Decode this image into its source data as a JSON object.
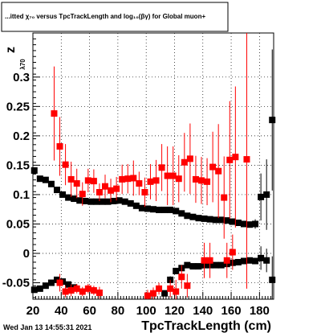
{
  "chart_data": {
    "type": "scatter",
    "title": "...itted  χ₇₀ versus TpcTrackLength and log₁₀(βγ) for Global muon+",
    "xlabel": "TpcTrackLength (cm)",
    "ylabel": "z",
    "ylabel_sub": "λ70",
    "timestamp": "Wed Jan 13 14:55:31 2021",
    "xlim": [
      20,
      190
    ],
    "ylim": [
      -0.078,
      0.375
    ],
    "x_ticks": [
      20,
      40,
      60,
      80,
      100,
      120,
      140,
      160,
      180
    ],
    "y_ticks": [
      -0.05,
      0,
      0.05,
      0.1,
      0.15,
      0.2,
      0.25,
      0.3
    ],
    "y_tick_labels": [
      "-0.05",
      "0",
      "0.05",
      "0.1",
      "0.15",
      "0.2",
      "0.25",
      "0.3"
    ],
    "grid": true,
    "colors": {
      "black_series": "#000000",
      "red_series": "#ff0000"
    },
    "series": [
      {
        "color": "black",
        "x": [
          21,
          25,
          29,
          33,
          37,
          41,
          45,
          49,
          53,
          57,
          61,
          65,
          69,
          73,
          77,
          81,
          85,
          89,
          93,
          97,
          101,
          105,
          109,
          113,
          117,
          121,
          125,
          129,
          133,
          137,
          141,
          145,
          149,
          153,
          157,
          161,
          165,
          169,
          173,
          177,
          181,
          185,
          189
        ],
        "y": [
          0.141,
          0.127,
          0.125,
          0.118,
          0.108,
          0.1,
          0.095,
          0.093,
          0.09,
          0.089,
          0.088,
          0.088,
          0.088,
          0.088,
          0.089,
          0.09,
          0.088,
          0.085,
          0.081,
          0.077,
          0.076,
          0.075,
          0.074,
          0.074,
          0.074,
          0.072,
          0.068,
          0.064,
          0.062,
          0.06,
          0.059,
          0.058,
          0.057,
          0.057,
          0.056,
          0.054,
          0.052,
          0.05,
          0.049,
          0.05,
          0.096,
          0.1,
          0.227
        ],
        "yerr": [
          0.005,
          0.003,
          0.003,
          0.003,
          0.003,
          0.002,
          0.002,
          0.002,
          0.002,
          0.002,
          0.002,
          0.002,
          0.002,
          0.002,
          0.002,
          0.002,
          0.002,
          0.002,
          0.002,
          0.002,
          0.002,
          0.002,
          0.002,
          0.002,
          0.002,
          0.002,
          0.002,
          0.002,
          0.002,
          0.002,
          0.002,
          0.002,
          0.002,
          0.002,
          0.002,
          0.003,
          0.003,
          0.003,
          0.004,
          0.008,
          0.04,
          0.06,
          0.12
        ]
      },
      {
        "color": "black",
        "x": [
          21,
          25,
          29,
          33,
          37,
          41,
          45,
          49,
          113,
          117,
          121,
          125,
          129,
          133,
          137,
          141,
          145,
          149,
          153,
          157,
          161,
          165,
          169,
          173,
          177,
          181,
          185,
          189
        ],
        "y": [
          -0.062,
          -0.06,
          -0.055,
          -0.05,
          -0.045,
          -0.048,
          -0.053,
          -0.058,
          -0.068,
          -0.045,
          -0.03,
          -0.025,
          -0.02,
          -0.022,
          -0.022,
          -0.02,
          -0.02,
          -0.02,
          -0.02,
          -0.018,
          -0.016,
          -0.015,
          -0.013,
          -0.012,
          -0.013,
          -0.008,
          -0.012,
          -0.045
        ],
        "yerr": [
          0.003,
          0.003,
          0.003,
          0.003,
          0.003,
          0.003,
          0.003,
          0.003,
          0.004,
          0.006,
          0.004,
          0.003,
          0.003,
          0.003,
          0.003,
          0.003,
          0.003,
          0.003,
          0.003,
          0.003,
          0.003,
          0.003,
          0.003,
          0.004,
          0.004,
          0.02,
          0.02,
          0.04
        ]
      },
      {
        "color": "red",
        "x": [
          35,
          39,
          43,
          47,
          51,
          55,
          59,
          63,
          67,
          71,
          75,
          79,
          83,
          87,
          91,
          95,
          99,
          103,
          107,
          111,
          115,
          119,
          123,
          127,
          131,
          135,
          139,
          143,
          147,
          151,
          155,
          159,
          163,
          171
        ],
        "y": [
          0.238,
          0.182,
          0.151,
          0.126,
          0.119,
          0.101,
          0.124,
          0.123,
          0.104,
          0.114,
          0.107,
          0.11,
          0.126,
          0.127,
          0.128,
          0.119,
          0.104,
          0.122,
          0.124,
          0.146,
          0.132,
          0.132,
          0.127,
          0.155,
          0.161,
          0.126,
          0.124,
          0.122,
          0.147,
          0.14,
          0.095,
          0.159,
          0.164,
          0.16
        ],
        "yerr": [
          0.08,
          0.05,
          0.035,
          0.03,
          0.025,
          0.02,
          0.02,
          0.02,
          0.015,
          0.02,
          0.02,
          0.02,
          0.025,
          0.025,
          0.03,
          0.02,
          0.025,
          0.03,
          0.035,
          0.04,
          0.05,
          0.05,
          0.04,
          0.05,
          0.06,
          0.04,
          0.04,
          0.04,
          0.06,
          0.08,
          0.07,
          0.1,
          0.12,
          0.22
        ]
      },
      {
        "color": "red",
        "x": [
          39,
          43,
          47,
          51,
          55,
          59,
          63,
          67,
          101,
          105,
          109,
          117,
          121,
          125,
          129,
          141,
          145,
          157,
          161
        ],
        "y": [
          -0.05,
          -0.065,
          -0.063,
          -0.06,
          -0.065,
          -0.06,
          -0.063,
          -0.067,
          -0.072,
          -0.068,
          -0.06,
          -0.06,
          -0.065,
          -0.04,
          -0.055,
          -0.012,
          -0.012,
          -0.012,
          0.002
        ],
        "yerr": [
          0.015,
          0.01,
          0.01,
          0.008,
          0.008,
          0.008,
          0.008,
          0.01,
          0.01,
          0.01,
          0.01,
          0.015,
          0.02,
          0.02,
          0.02,
          0.03,
          0.03,
          0.03,
          0.03
        ]
      }
    ]
  }
}
